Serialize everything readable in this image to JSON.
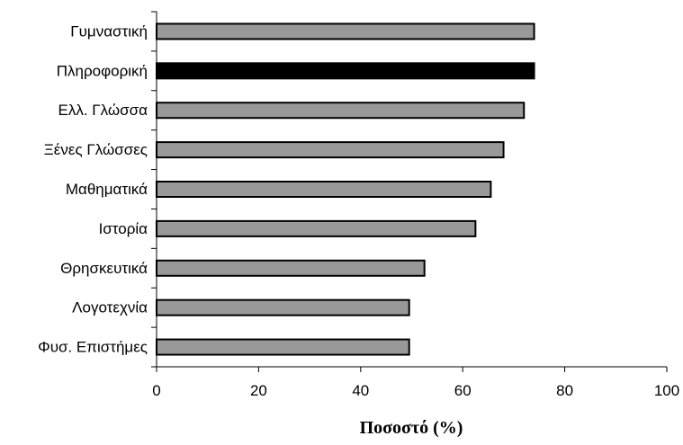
{
  "chart_data": {
    "type": "bar",
    "orientation": "horizontal",
    "categories": [
      "Γυμναστική",
      "Πληροφορική",
      "Ελλ. Γλώσσα",
      "Ξένες Γλώσσες",
      "Μαθηματικά",
      "Ιστορία",
      "Θρησκευτικά",
      "Λογοτεχνία",
      "Φυσ. Επιστήμες"
    ],
    "values": [
      74,
      74,
      72,
      68,
      65.5,
      62.5,
      52.5,
      49.5,
      49.5
    ],
    "highlight_index": 1,
    "xlabel": "Ποσοστό (%)",
    "ylabel": "",
    "xlim": [
      0,
      100
    ],
    "xticks": [
      0,
      20,
      40,
      60,
      80,
      100
    ],
    "xtick_labels": [
      "0",
      "20",
      "40",
      "60",
      "80",
      "100"
    ],
    "grid": false,
    "legend": "none",
    "colors": {
      "bar": "#999999",
      "highlight": "#000000",
      "bar_stroke": "#000000",
      "axis": "#000000"
    }
  }
}
